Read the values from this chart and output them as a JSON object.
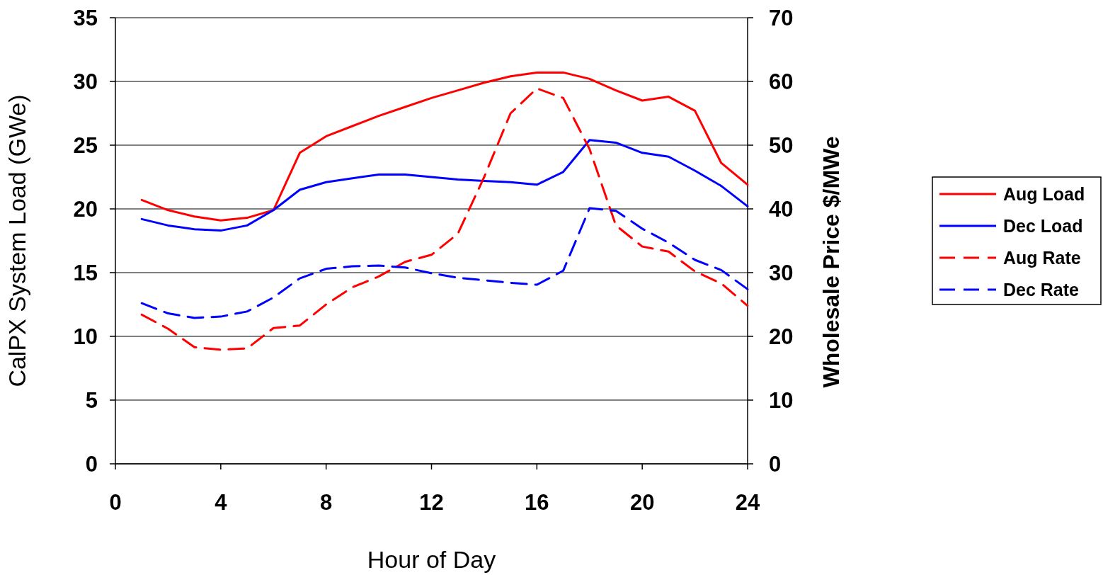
{
  "chart_data": {
    "type": "line",
    "xlabel": "Hour of Day",
    "ylabel": "CalPX System Load (GWe)",
    "y2label": "Wholesale Price $/MWe",
    "x": [
      1,
      2,
      3,
      4,
      5,
      6,
      7,
      8,
      9,
      10,
      11,
      12,
      13,
      14,
      15,
      16,
      17,
      18,
      19,
      20,
      21,
      22,
      23,
      24
    ],
    "xlim": [
      0,
      24
    ],
    "xticks": [
      0,
      4,
      8,
      12,
      16,
      20,
      24
    ],
    "ylim": [
      0,
      35
    ],
    "yticks": [
      0,
      5,
      10,
      15,
      20,
      25,
      30,
      35
    ],
    "y2lim": [
      0,
      70
    ],
    "y2ticks": [
      0,
      10,
      20,
      30,
      40,
      50,
      60,
      70
    ],
    "grid": "y",
    "legend": "right",
    "series": [
      {
        "name": "Aug Load",
        "color": "#ff0000",
        "line_style": "solid",
        "values": [
          20.7,
          19.9,
          19.4,
          19.1,
          19.3,
          19.9,
          24.4,
          25.7,
          26.5,
          27.3,
          28.0,
          28.7,
          29.3,
          29.9,
          30.4,
          30.7,
          30.7,
          30.2,
          29.3,
          28.5,
          28.8,
          27.7,
          23.6,
          21.9
        ]
      },
      {
        "name": "Dec Load",
        "color": "#0000ff",
        "line_style": "solid",
        "values": [
          19.2,
          18.7,
          18.4,
          18.3,
          18.7,
          19.9,
          21.5,
          22.1,
          22.4,
          22.7,
          22.7,
          22.5,
          22.3,
          22.2,
          22.1,
          21.9,
          22.9,
          25.4,
          25.2,
          24.4,
          24.1,
          23.0,
          21.8,
          20.2
        ]
      },
      {
        "name": "Aug Rate",
        "color": "#ff0000",
        "line_style": "dashed",
        "axis": "y2",
        "values": [
          23.4,
          21.2,
          18.3,
          17.9,
          18.1,
          21.3,
          21.7,
          25.0,
          27.7,
          29.4,
          31.7,
          32.8,
          36.1,
          45,
          55,
          58.9,
          57.4,
          49.4,
          37.4,
          34.1,
          33.3,
          30.2,
          28.3,
          24.8
        ]
      },
      {
        "name": "Dec Rate",
        "color": "#0000ff",
        "line_style": "dashed",
        "axis": "y2",
        "values": [
          25.2,
          23.6,
          22.9,
          23.1,
          23.9,
          26.1,
          29.1,
          30.6,
          31.0,
          31.1,
          30.8,
          29.9,
          29.2,
          28.8,
          28.4,
          28.1,
          30.3,
          40.1,
          39.7,
          36.9,
          34.7,
          32.0,
          30.4,
          27.4
        ]
      }
    ]
  }
}
